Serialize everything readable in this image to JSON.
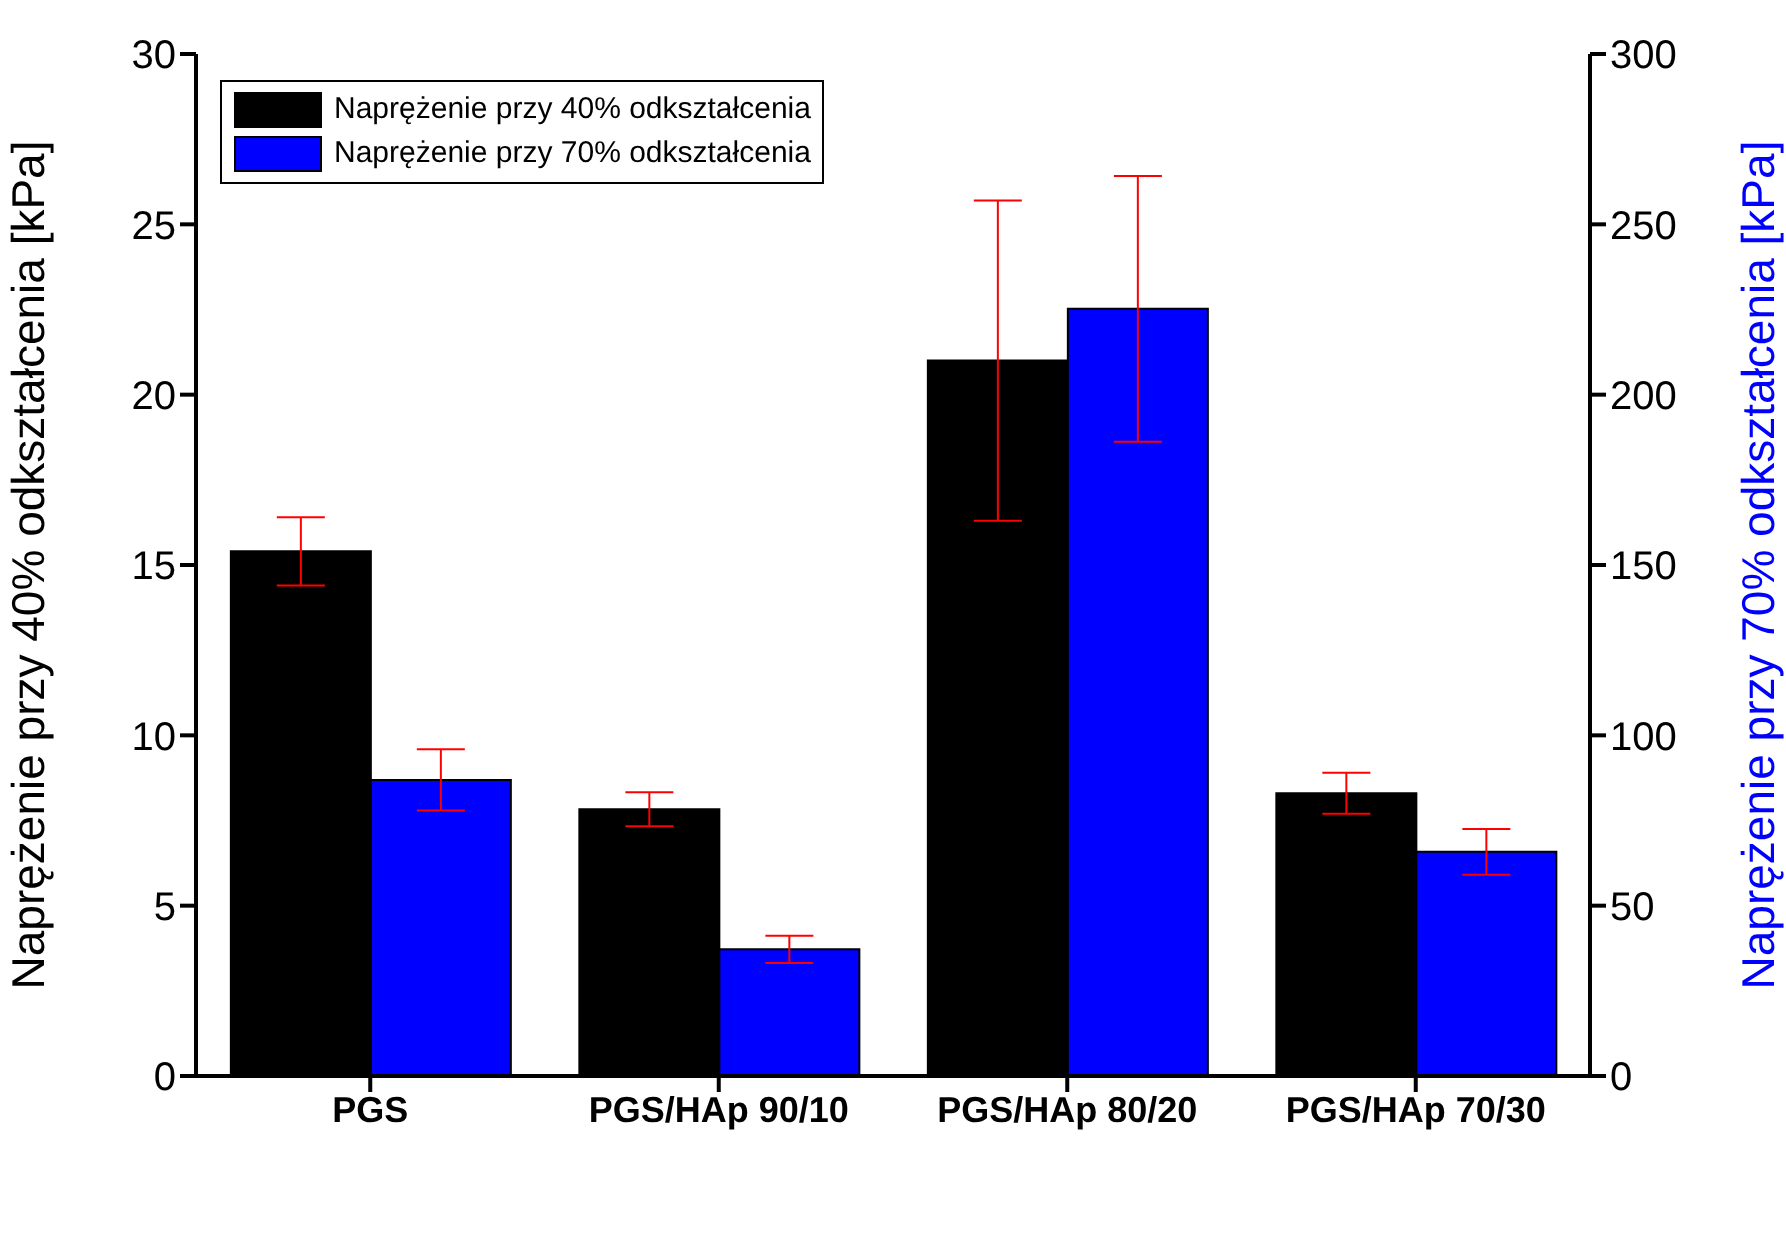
{
  "chart_data": {
    "type": "bar",
    "categories": [
      "PGS",
      "PGS/HAp 90/10",
      "PGS/HAp 80/20",
      "PGS/HAp 70/30"
    ],
    "ylabel": "Naprężenie przy 40% odkształcenia [kPa]",
    "y2label": "Naprężenie przy 70% odkształcenia [kPa]",
    "series": [
      {
        "name": "Naprężenie przy 40% odkształcenia",
        "color": "#000000",
        "values": [
          15.4,
          7.83,
          21.0,
          8.3
        ],
        "errors": [
          1.0,
          0.5,
          4.7,
          0.6
        ]
      },
      {
        "name": "Naprężenie przy 70% odkształcenia",
        "color": "#0000ff",
        "axis": "y2",
        "values": [
          86.9,
          37.2,
          225.2,
          65.8
        ],
        "errors": [
          9,
          4,
          39,
          6.7
        ]
      }
    ],
    "ylim": [
      0,
      30
    ],
    "yticks": [
      0,
      5,
      10,
      15,
      20,
      25,
      30
    ],
    "y2lim": [
      0,
      300
    ],
    "y2ticks": [
      0,
      50,
      100,
      150,
      200,
      250,
      300
    ],
    "grid": false,
    "legend": "top left"
  }
}
